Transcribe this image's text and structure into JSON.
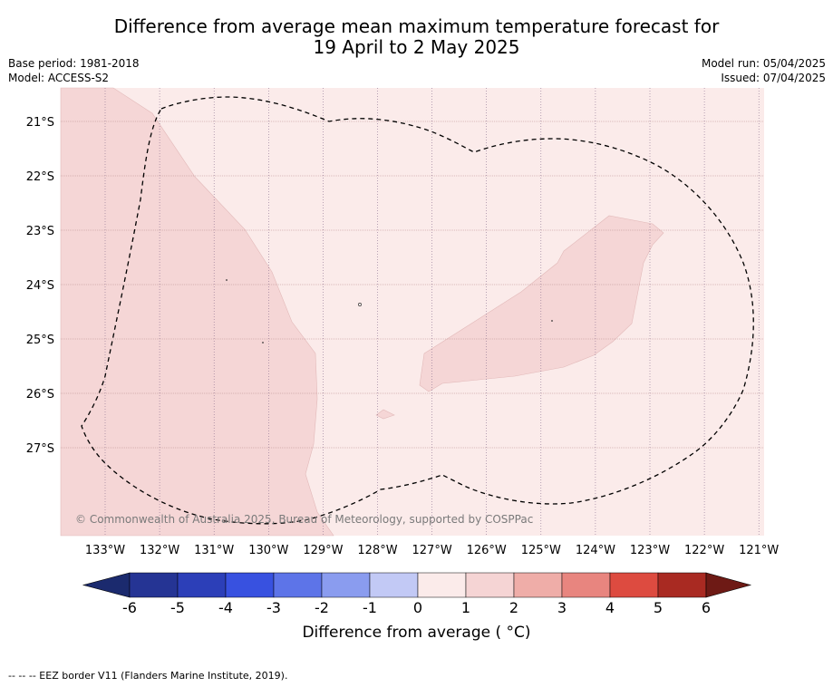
{
  "title_line1": "Difference from average mean maximum temperature forecast for",
  "title_line2": "19 April to 2 May 2025",
  "base_period": "Base period: 1981-2018",
  "model": "Model: ACCESS-S2",
  "model_run": "Model run: 05/04/2025",
  "issued": "Issued: 07/04/2025",
  "copyright": "© Commonwealth of Australia 2025, Bureau of Meteorology, supported by COSPPac",
  "colorbar_title": "Difference from average ( °C)",
  "footer": "--  --  -- EEZ border V11 (Flanders Marine Institute, 2019).",
  "lat_labels": [
    "21°S",
    "22°S",
    "23°S",
    "24°S",
    "25°S",
    "26°S",
    "27°S"
  ],
  "lon_labels": [
    "133°W",
    "132°W",
    "131°W",
    "130°W",
    "129°W",
    "128°W",
    "127°W",
    "126°W",
    "125°W",
    "124°W",
    "123°W",
    "122°W",
    "121°W"
  ],
  "colorbar_ticks": [
    "-6",
    "-5",
    "-4",
    "-3",
    "-2",
    "-1",
    "0",
    "1",
    "2",
    "3",
    "4",
    "5",
    "6"
  ],
  "colorbar_colors": [
    "#253494",
    "#2c3fb8",
    "#3851e0",
    "#5d74e8",
    "#8a9cef",
    "#c2c9f5",
    "#e8ebfb",
    "#fbebea",
    "#f5d4d4",
    "#efada8",
    "#e8857f",
    "#dd4b40",
    "#a92a22"
  ],
  "colorbar_under_color": "#1b2a6e",
  "colorbar_over_color": "#6e1a15",
  "map_colors": {
    "class_0_to_1": "#fbebea",
    "class_1_to_2": "#f5d6d6",
    "eez_border": "#000000"
  }
}
